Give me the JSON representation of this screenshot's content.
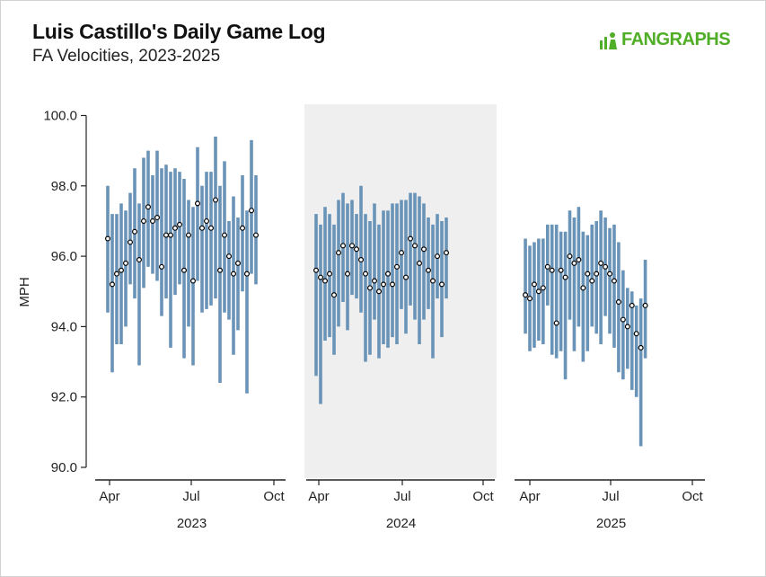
{
  "header": {
    "title": "Luis Castillo's Daily Game Log",
    "subtitle": "FA Velocities, 2023-2025",
    "brand": "FANGRAPHS",
    "brand_color": "#50ae26"
  },
  "chart_data": {
    "type": "scatter",
    "ylabel": "MPH",
    "ylim": [
      90,
      100
    ],
    "yticks": [
      "90.0",
      "92.0",
      "94.0",
      "96.0",
      "98.0",
      "100.0"
    ],
    "xtick_labels": [
      "Apr",
      "Jul",
      "Oct"
    ],
    "colors": {
      "range_bar": "#6a93b8",
      "mean_point": "#000000",
      "shaded_panel": "#efefef"
    },
    "panels": [
      {
        "year": "2023",
        "shaded": false,
        "games": [
          {
            "date": "2023-03-30",
            "min": 94.4,
            "max": 98.0,
            "mean": 96.5
          },
          {
            "date": "2023-04-04",
            "min": 92.7,
            "max": 97.2,
            "mean": 95.2
          },
          {
            "date": "2023-04-09",
            "min": 93.5,
            "max": 97.2,
            "mean": 95.5
          },
          {
            "date": "2023-04-14",
            "min": 93.5,
            "max": 97.5,
            "mean": 95.6
          },
          {
            "date": "2023-04-19",
            "min": 94.0,
            "max": 97.3,
            "mean": 95.8
          },
          {
            "date": "2023-04-24",
            "min": 95.2,
            "max": 97.8,
            "mean": 96.4
          },
          {
            "date": "2023-04-29",
            "min": 94.8,
            "max": 98.5,
            "mean": 96.7
          },
          {
            "date": "2023-05-04",
            "min": 92.9,
            "max": 97.5,
            "mean": 95.9
          },
          {
            "date": "2023-05-09",
            "min": 95.1,
            "max": 98.8,
            "mean": 97.0
          },
          {
            "date": "2023-05-14",
            "min": 95.7,
            "max": 99.0,
            "mean": 97.4
          },
          {
            "date": "2023-05-19",
            "min": 95.5,
            "max": 98.3,
            "mean": 97.0
          },
          {
            "date": "2023-05-24",
            "min": 95.3,
            "max": 99.0,
            "mean": 97.1
          },
          {
            "date": "2023-05-29",
            "min": 94.3,
            "max": 98.5,
            "mean": 95.7
          },
          {
            "date": "2023-06-03",
            "min": 94.8,
            "max": 98.6,
            "mean": 96.6
          },
          {
            "date": "2023-06-08",
            "min": 93.4,
            "max": 98.4,
            "mean": 96.6
          },
          {
            "date": "2023-06-13",
            "min": 94.9,
            "max": 98.5,
            "mean": 96.8
          },
          {
            "date": "2023-06-18",
            "min": 95.2,
            "max": 98.4,
            "mean": 96.9
          },
          {
            "date": "2023-06-23",
            "min": 93.1,
            "max": 98.2,
            "mean": 95.6
          },
          {
            "date": "2023-06-28",
            "min": 94.0,
            "max": 97.6,
            "mean": 96.6
          },
          {
            "date": "2023-07-03",
            "min": 92.9,
            "max": 97.4,
            "mean": 95.3
          },
          {
            "date": "2023-07-08",
            "min": 95.3,
            "max": 99.1,
            "mean": 97.5
          },
          {
            "date": "2023-07-13",
            "min": 94.4,
            "max": 98.0,
            "mean": 96.8
          },
          {
            "date": "2023-07-18",
            "min": 94.5,
            "max": 98.4,
            "mean": 97.0
          },
          {
            "date": "2023-07-23",
            "min": 94.6,
            "max": 98.4,
            "mean": 96.8
          },
          {
            "date": "2023-07-28",
            "min": 94.8,
            "max": 99.4,
            "mean": 97.6
          },
          {
            "date": "2023-08-02",
            "min": 92.4,
            "max": 98.0,
            "mean": 95.6
          },
          {
            "date": "2023-08-07",
            "min": 94.4,
            "max": 98.7,
            "mean": 96.6
          },
          {
            "date": "2023-08-12",
            "min": 94.2,
            "max": 97.0,
            "mean": 96.0
          },
          {
            "date": "2023-08-17",
            "min": 93.2,
            "max": 97.7,
            "mean": 95.5
          },
          {
            "date": "2023-08-22",
            "min": 93.9,
            "max": 97.1,
            "mean": 95.8
          },
          {
            "date": "2023-08-27",
            "min": 95.0,
            "max": 98.3,
            "mean": 96.8
          },
          {
            "date": "2023-09-01",
            "min": 92.1,
            "max": 97.3,
            "mean": 95.5
          },
          {
            "date": "2023-09-06",
            "min": 95.5,
            "max": 99.3,
            "mean": 97.3
          },
          {
            "date": "2023-09-11",
            "min": 95.2,
            "max": 98.3,
            "mean": 96.6
          }
        ]
      },
      {
        "year": "2024",
        "shaded": true,
        "games": [
          {
            "date": "2024-03-29",
            "min": 92.6,
            "max": 97.2,
            "mean": 95.6
          },
          {
            "date": "2024-04-03",
            "min": 91.8,
            "max": 96.9,
            "mean": 95.4
          },
          {
            "date": "2024-04-08",
            "min": 93.6,
            "max": 97.4,
            "mean": 95.3
          },
          {
            "date": "2024-04-13",
            "min": 93.7,
            "max": 97.2,
            "mean": 95.5
          },
          {
            "date": "2024-04-18",
            "min": 93.2,
            "max": 96.9,
            "mean": 94.9
          },
          {
            "date": "2024-04-23",
            "min": 94.0,
            "max": 97.6,
            "mean": 96.1
          },
          {
            "date": "2024-04-28",
            "min": 94.7,
            "max": 97.8,
            "mean": 96.3
          },
          {
            "date": "2024-05-03",
            "min": 93.9,
            "max": 97.5,
            "mean": 95.5
          },
          {
            "date": "2024-05-08",
            "min": 94.9,
            "max": 97.6,
            "mean": 96.3
          },
          {
            "date": "2024-05-13",
            "min": 94.8,
            "max": 97.2,
            "mean": 96.2
          },
          {
            "date": "2024-05-18",
            "min": 94.4,
            "max": 98.0,
            "mean": 95.9
          },
          {
            "date": "2024-05-23",
            "min": 93.0,
            "max": 97.2,
            "mean": 95.5
          },
          {
            "date": "2024-05-28",
            "min": 93.2,
            "max": 97.0,
            "mean": 95.1
          },
          {
            "date": "2024-06-02",
            "min": 94.2,
            "max": 97.5,
            "mean": 95.3
          },
          {
            "date": "2024-06-07",
            "min": 93.1,
            "max": 96.9,
            "mean": 95.0
          },
          {
            "date": "2024-06-12",
            "min": 93.5,
            "max": 97.3,
            "mean": 95.2
          },
          {
            "date": "2024-06-17",
            "min": 93.4,
            "max": 97.3,
            "mean": 95.5
          },
          {
            "date": "2024-06-22",
            "min": 93.7,
            "max": 97.5,
            "mean": 95.2
          },
          {
            "date": "2024-06-27",
            "min": 93.5,
            "max": 97.5,
            "mean": 95.7
          },
          {
            "date": "2024-07-02",
            "min": 94.5,
            "max": 97.6,
            "mean": 96.1
          },
          {
            "date": "2024-07-07",
            "min": 93.8,
            "max": 97.6,
            "mean": 95.4
          },
          {
            "date": "2024-07-12",
            "min": 94.6,
            "max": 97.8,
            "mean": 96.5
          },
          {
            "date": "2024-07-17",
            "min": 94.2,
            "max": 97.8,
            "mean": 96.3
          },
          {
            "date": "2024-07-22",
            "min": 93.5,
            "max": 97.7,
            "mean": 95.8
          },
          {
            "date": "2024-07-27",
            "min": 94.2,
            "max": 97.5,
            "mean": 96.2
          },
          {
            "date": "2024-08-01",
            "min": 94.5,
            "max": 97.1,
            "mean": 95.6
          },
          {
            "date": "2024-08-06",
            "min": 93.1,
            "max": 96.9,
            "mean": 95.3
          },
          {
            "date": "2024-08-11",
            "min": 94.8,
            "max": 97.2,
            "mean": 96.0
          },
          {
            "date": "2024-08-16",
            "min": 93.7,
            "max": 97.0,
            "mean": 95.2
          },
          {
            "date": "2024-08-21",
            "min": 94.8,
            "max": 97.1,
            "mean": 96.1
          }
        ]
      },
      {
        "year": "2025",
        "shaded": false,
        "games": [
          {
            "date": "2025-03-27",
            "min": 93.8,
            "max": 96.5,
            "mean": 94.9
          },
          {
            "date": "2025-04-01",
            "min": 93.3,
            "max": 96.3,
            "mean": 94.8
          },
          {
            "date": "2025-04-06",
            "min": 93.4,
            "max": 96.4,
            "mean": 95.2
          },
          {
            "date": "2025-04-11",
            "min": 93.6,
            "max": 96.5,
            "mean": 95.0
          },
          {
            "date": "2025-04-16",
            "min": 93.5,
            "max": 96.5,
            "mean": 95.1
          },
          {
            "date": "2025-04-21",
            "min": 94.6,
            "max": 96.9,
            "mean": 95.7
          },
          {
            "date": "2025-04-26",
            "min": 93.2,
            "max": 96.9,
            "mean": 95.6
          },
          {
            "date": "2025-05-01",
            "min": 93.1,
            "max": 96.9,
            "mean": 94.1
          },
          {
            "date": "2025-05-06",
            "min": 93.3,
            "max": 96.7,
            "mean": 95.6
          },
          {
            "date": "2025-05-11",
            "min": 92.5,
            "max": 96.7,
            "mean": 95.4
          },
          {
            "date": "2025-05-16",
            "min": 94.2,
            "max": 97.3,
            "mean": 96.0
          },
          {
            "date": "2025-05-21",
            "min": 93.3,
            "max": 97.1,
            "mean": 95.8
          },
          {
            "date": "2025-05-26",
            "min": 94.0,
            "max": 97.4,
            "mean": 95.9
          },
          {
            "date": "2025-05-31",
            "min": 93.0,
            "max": 96.7,
            "mean": 95.1
          },
          {
            "date": "2025-06-05",
            "min": 93.3,
            "max": 96.6,
            "mean": 95.5
          },
          {
            "date": "2025-06-10",
            "min": 94.0,
            "max": 96.9,
            "mean": 95.3
          },
          {
            "date": "2025-06-15",
            "min": 93.8,
            "max": 97.0,
            "mean": 95.5
          },
          {
            "date": "2025-06-20",
            "min": 93.5,
            "max": 97.3,
            "mean": 95.8
          },
          {
            "date": "2025-06-25",
            "min": 94.3,
            "max": 97.1,
            "mean": 95.7
          },
          {
            "date": "2025-06-30",
            "min": 93.8,
            "max": 96.8,
            "mean": 95.5
          },
          {
            "date": "2025-07-05",
            "min": 93.4,
            "max": 96.9,
            "mean": 95.3
          },
          {
            "date": "2025-07-10",
            "min": 92.7,
            "max": 96.4,
            "mean": 94.7
          },
          {
            "date": "2025-07-15",
            "min": 92.5,
            "max": 95.6,
            "mean": 94.2
          },
          {
            "date": "2025-07-20",
            "min": 92.8,
            "max": 95.1,
            "mean": 94.0
          },
          {
            "date": "2025-07-25",
            "min": 92.2,
            "max": 95.0,
            "mean": 94.6
          },
          {
            "date": "2025-07-30",
            "min": 92.0,
            "max": 94.6,
            "mean": 93.8
          },
          {
            "date": "2025-08-04",
            "min": 90.6,
            "max": 94.8,
            "mean": 93.4
          },
          {
            "date": "2025-08-09",
            "min": 93.1,
            "max": 95.9,
            "mean": 94.6
          }
        ]
      }
    ]
  }
}
